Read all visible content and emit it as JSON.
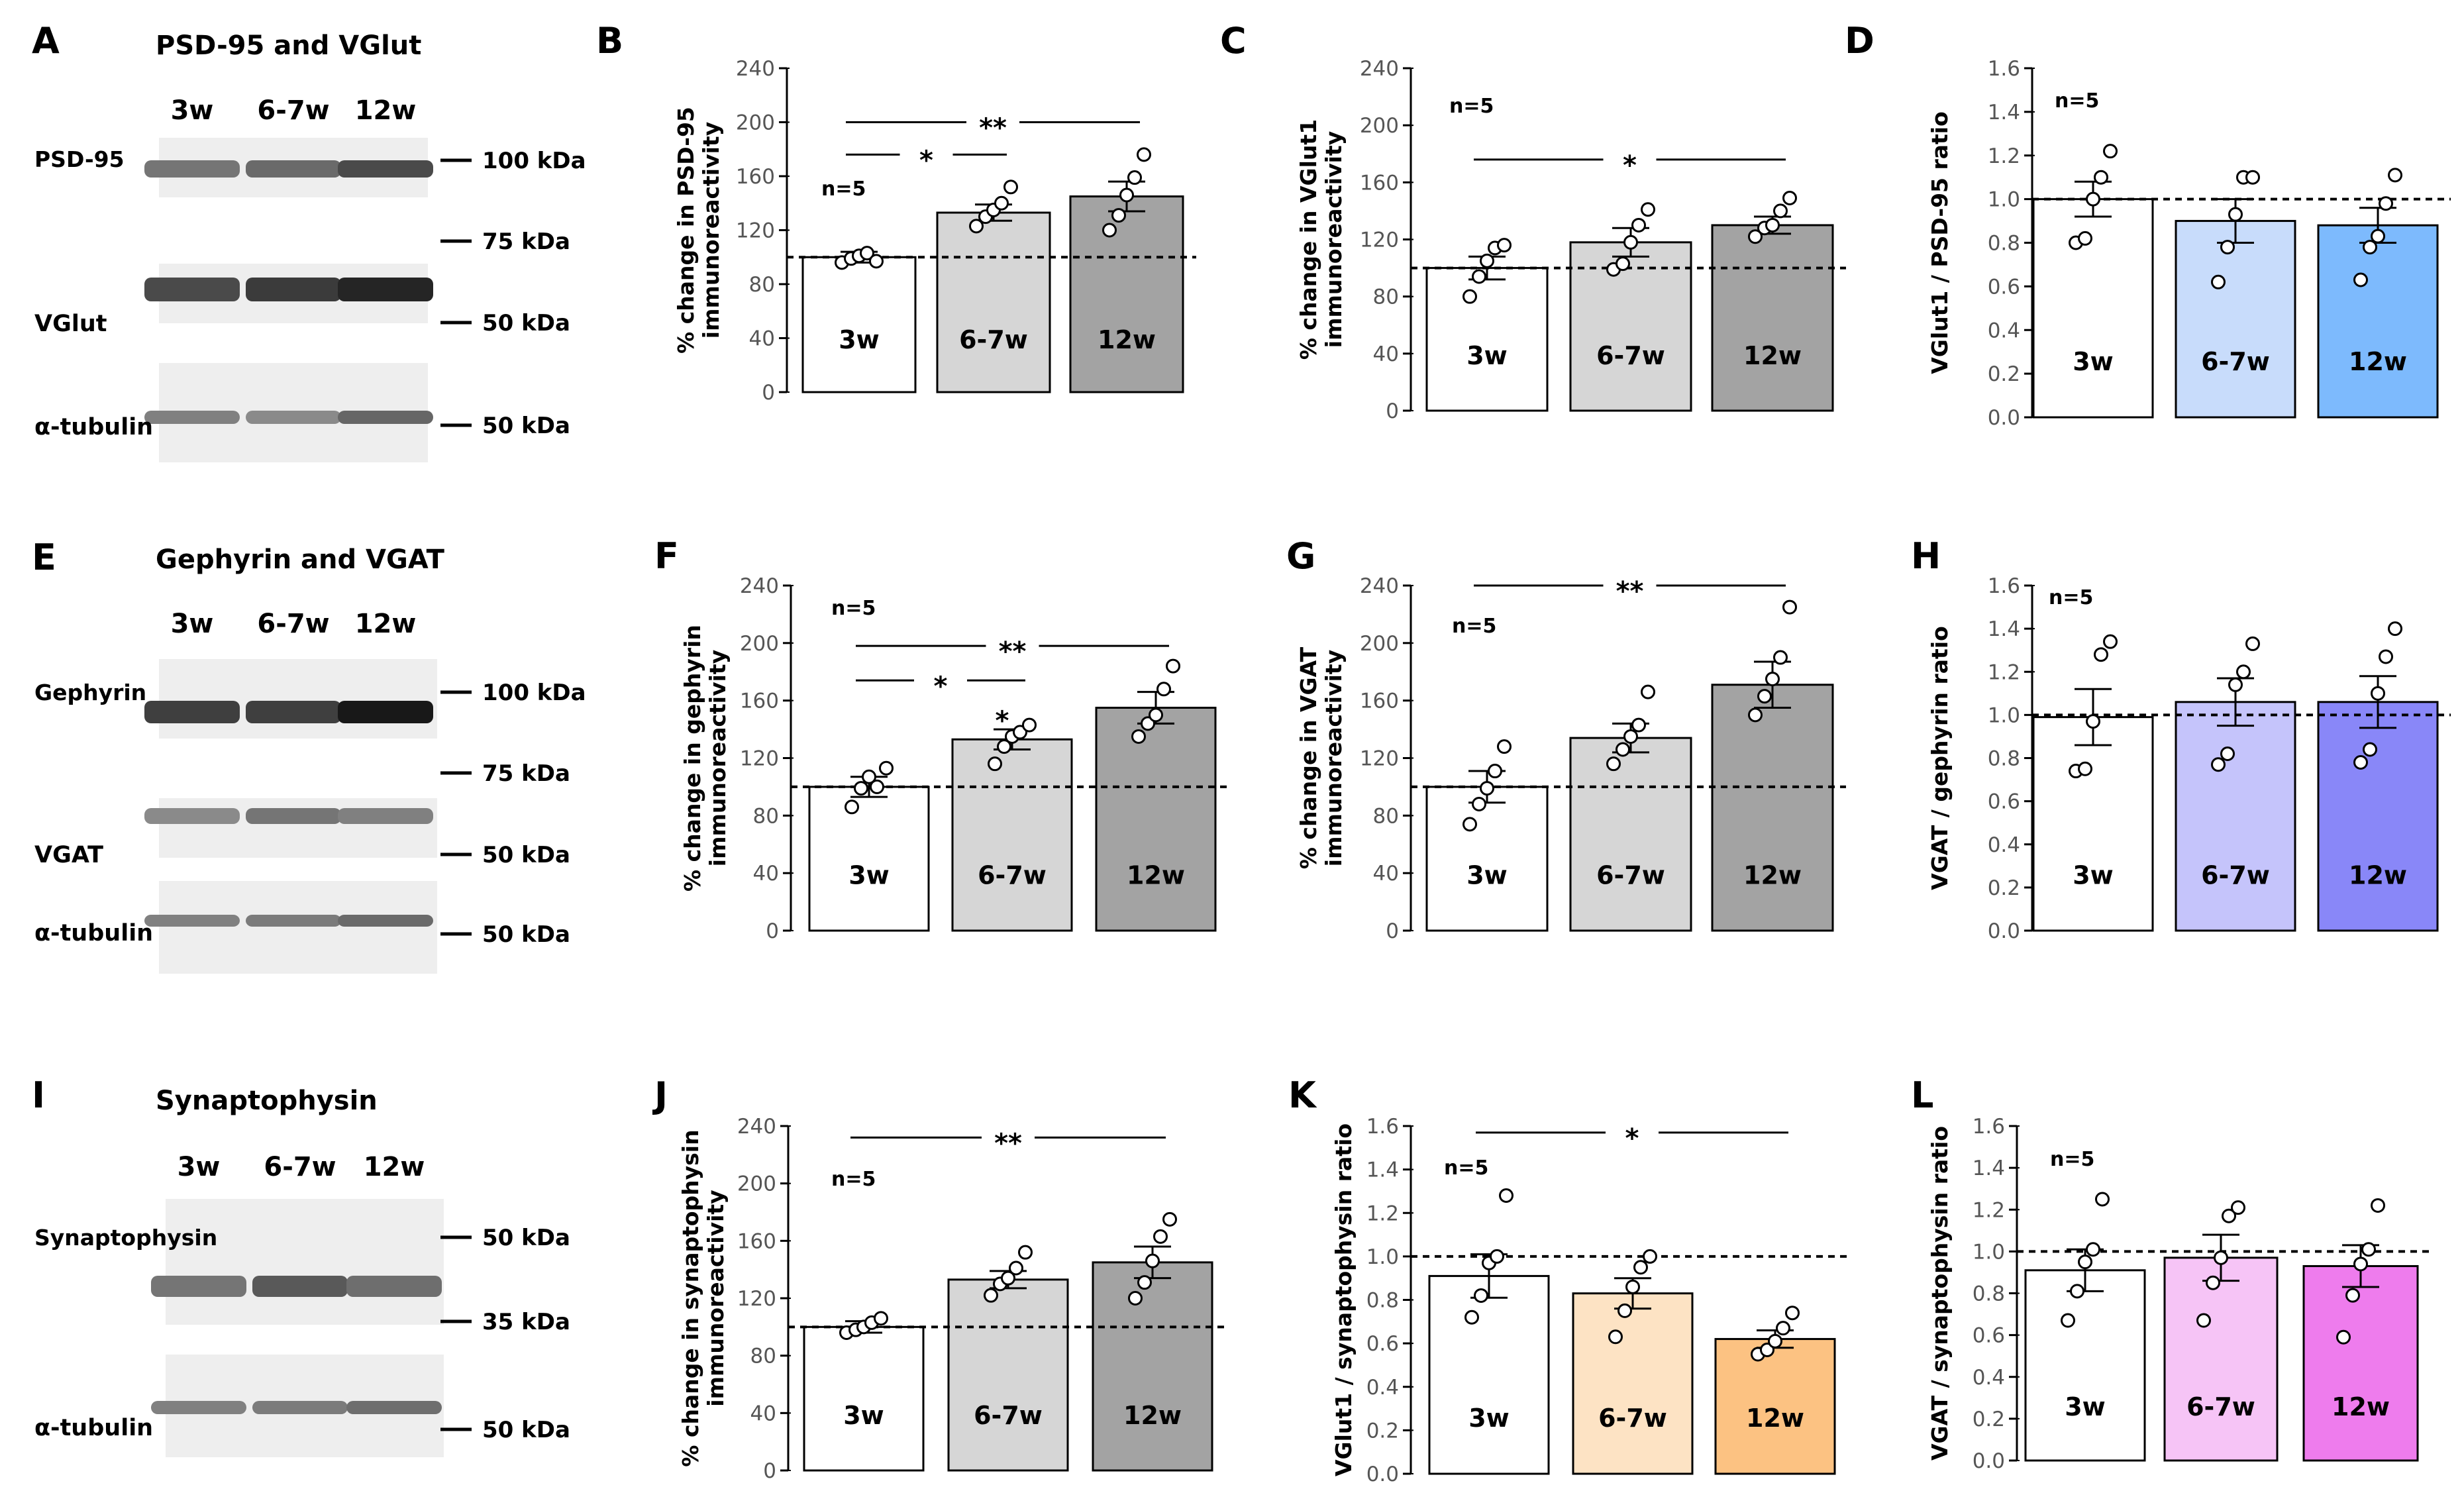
{
  "blots": [
    {
      "letter": "A",
      "title": "PSD-95 and VGlut",
      "groups": [
        "3w",
        "6-7w",
        "12w"
      ],
      "proteins": [
        {
          "name": "PSD-95",
          "marker": "100 kDa",
          "intensity": [
            0.55,
            0.6,
            0.75
          ]
        },
        {
          "name": "VGlut",
          "marker": "50 kDa",
          "intensity": [
            0.75,
            0.82,
            0.92
          ]
        },
        {
          "name": "α-tubulin",
          "marker": "50 kDa",
          "intensity": [
            0.5,
            0.45,
            0.62
          ]
        }
      ],
      "extra_markers": [
        "75 kDa"
      ]
    },
    {
      "letter": "E",
      "title": "Gephyrin and VGAT",
      "groups": [
        "3w",
        "6-7w",
        "12w"
      ],
      "proteins": [
        {
          "name": "Gephyrin",
          "marker": "100 kDa",
          "intensity": [
            0.8,
            0.8,
            0.98
          ]
        },
        {
          "name": "VGAT",
          "marker": "50 kDa",
          "intensity": [
            0.45,
            0.55,
            0.5
          ]
        },
        {
          "name": "α-tubulin",
          "marker": "50 kDa",
          "intensity": [
            0.5,
            0.52,
            0.6
          ]
        }
      ],
      "extra_markers": [
        "75 kDa"
      ]
    },
    {
      "letter": "I",
      "title": "Synaptophysin",
      "groups": [
        "3w",
        "6-7w",
        "12w"
      ],
      "proteins": [
        {
          "name": "Synaptophysin",
          "marker": "50 kDa",
          "intensity": [
            0.55,
            0.68,
            0.58
          ]
        },
        {
          "name": "α-tubulin",
          "marker": "50 kDa",
          "intensity": [
            0.5,
            0.52,
            0.58
          ]
        }
      ],
      "extra_markers": [
        "35 kDa"
      ]
    }
  ],
  "chart_data": [
    {
      "letter": "B",
      "type": "bar",
      "ylabel": [
        "% change in PSD-95",
        "immunoreactivity"
      ],
      "categories": [
        "3w",
        "6-7w",
        "12w"
      ],
      "values": [
        100,
        133,
        145
      ],
      "sem": [
        4,
        6,
        11
      ],
      "points": [
        [
          96,
          99,
          101,
          103,
          97
        ],
        [
          123,
          130,
          135,
          140,
          152
        ],
        [
          120,
          131,
          146,
          159,
          176
        ]
      ],
      "ylim": [
        0,
        240
      ],
      "yticks": [
        "0",
        "40",
        "80",
        "120",
        "160",
        "200",
        "240"
      ],
      "ref": 100,
      "n_label": "n=5",
      "colors": [
        "#ffffff",
        "#d6d6d6",
        "#a3a3a3"
      ],
      "sig": [
        {
          "from": 1,
          "to": 3,
          "stars": "**",
          "level": 200
        },
        {
          "from": 1,
          "to": 2,
          "stars": "*",
          "level": 176
        }
      ]
    },
    {
      "letter": "C",
      "type": "bar",
      "ylabel": [
        "% change in VGlut1",
        "immunoreactivity"
      ],
      "categories": [
        "3w",
        "6-7w",
        "12w"
      ],
      "values": [
        100,
        118,
        130
      ],
      "sem": [
        8,
        10,
        6
      ],
      "points": [
        [
          80,
          94,
          105,
          114,
          116
        ],
        [
          99,
          103,
          118,
          130,
          141
        ],
        [
          122,
          128,
          130,
          140,
          149
        ]
      ],
      "ylim": [
        0,
        240
      ],
      "yticks": [
        "0",
        "40",
        "80",
        "120",
        "160",
        "200",
        "240"
      ],
      "ref": 100,
      "n_label": "n=5",
      "colors": [
        "#ffffff",
        "#d6d6d6",
        "#a3a3a3"
      ],
      "sig": [
        {
          "from": 1,
          "to": 3,
          "stars": "*",
          "level": 176
        }
      ]
    },
    {
      "letter": "D",
      "type": "bar",
      "ylabel": [
        "VGlut1 / PSD-95 ratio"
      ],
      "categories": [
        "3w",
        "6-7w",
        "12w"
      ],
      "values": [
        1.0,
        0.9,
        0.88
      ],
      "sem": [
        0.08,
        0.1,
        0.08
      ],
      "points": [
        [
          0.8,
          0.82,
          1.0,
          1.1,
          1.22
        ],
        [
          0.62,
          0.78,
          0.93,
          1.1,
          1.1
        ],
        [
          0.63,
          0.78,
          0.83,
          0.98,
          1.11
        ]
      ],
      "ylim": [
        0,
        1.6
      ],
      "yticks": [
        "0.0",
        "0.2",
        "0.4",
        "0.6",
        "0.8",
        "1.0",
        "1.2",
        "1.4",
        "1.6"
      ],
      "ref": 1.0,
      "n_label": "n=5",
      "colors": [
        "#ffffff",
        "#c8dcfb",
        "#7dbafd"
      ],
      "sig": []
    },
    {
      "letter": "F",
      "type": "bar",
      "ylabel": [
        "% change in gephyrin",
        "immunoreactivity"
      ],
      "categories": [
        "3w",
        "6-7w",
        "12w"
      ],
      "values": [
        100,
        133,
        155
      ],
      "sem": [
        7,
        7,
        11
      ],
      "points": [
        [
          86,
          99,
          107,
          100,
          113
        ],
        [
          116,
          128,
          135,
          138,
          143
        ],
        [
          135,
          144,
          150,
          168,
          184
        ]
      ],
      "ylim": [
        0,
        240
      ],
      "yticks": [
        "0",
        "40",
        "80",
        "120",
        "160",
        "200",
        "240"
      ],
      "ref": 100,
      "n_label": "n=5",
      "colors": [
        "#ffffff",
        "#d6d6d6",
        "#a3a3a3"
      ],
      "sig": [
        {
          "from": 1,
          "to": 3,
          "stars": "**",
          "level": 198
        },
        {
          "from": 1,
          "to": 2,
          "stars": "*",
          "level": 174
        }
      ]
    },
    {
      "letter": "G",
      "type": "bar",
      "ylabel": [
        "% change in VGAT",
        "immunoreactivity"
      ],
      "categories": [
        "3w",
        "6-7w",
        "12w"
      ],
      "values": [
        100,
        134,
        171
      ],
      "sem": [
        11,
        10,
        16
      ],
      "points": [
        [
          74,
          88,
          99,
          111,
          128
        ],
        [
          116,
          126,
          135,
          143,
          166
        ],
        [
          150,
          163,
          175,
          190,
          225
        ]
      ],
      "ylim": [
        0,
        240
      ],
      "yticks": [
        "0",
        "40",
        "80",
        "120",
        "160",
        "200",
        "240"
      ],
      "ref": 100,
      "n_label": "n=5",
      "colors": [
        "#ffffff",
        "#d6d6d6",
        "#a3a3a3"
      ],
      "sig": [
        {
          "from": 1,
          "to": 3,
          "stars": "**",
          "level": 240
        }
      ]
    },
    {
      "letter": "H",
      "type": "bar",
      "ylabel": [
        "VGAT / gephyrin ratio"
      ],
      "categories": [
        "3w",
        "6-7w",
        "12w"
      ],
      "values": [
        0.99,
        1.06,
        1.06
      ],
      "sem": [
        0.13,
        0.11,
        0.12
      ],
      "points": [
        [
          0.74,
          0.75,
          0.97,
          1.28,
          1.34
        ],
        [
          0.77,
          0.82,
          1.14,
          1.2,
          1.33
        ],
        [
          0.78,
          0.84,
          1.1,
          1.27,
          1.4
        ]
      ],
      "ylim": [
        0,
        1.6
      ],
      "yticks": [
        "0.0",
        "0.2",
        "0.4",
        "0.6",
        "0.8",
        "1.0",
        "1.2",
        "1.4",
        "1.6"
      ],
      "ref": 1.0,
      "n_label": "n=5",
      "colors": [
        "#ffffff",
        "#c5c4fb",
        "#8987f8"
      ],
      "sig": []
    },
    {
      "letter": "J",
      "type": "bar",
      "ylabel": [
        "% change in synaptophysin",
        "immunoreactivity"
      ],
      "categories": [
        "3w",
        "6-7w",
        "12w"
      ],
      "values": [
        100,
        133,
        145
      ],
      "sem": [
        4,
        6,
        11
      ],
      "points": [
        [
          96,
          98,
          100,
          103,
          106
        ],
        [
          122,
          130,
          134,
          141,
          152
        ],
        [
          120,
          131,
          146,
          163,
          175
        ]
      ],
      "ylim": [
        0,
        240
      ],
      "yticks": [
        "0",
        "40",
        "80",
        "120",
        "160",
        "200",
        "240"
      ],
      "ref": 100,
      "n_label": "n=5",
      "colors": [
        "#ffffff",
        "#d6d6d6",
        "#a3a3a3"
      ],
      "sig": [
        {
          "from": 1,
          "to": 3,
          "stars": "**",
          "level": 232
        }
      ]
    },
    {
      "letter": "K",
      "type": "bar",
      "ylabel": [
        "VGlut1 / synaptophysin ratio"
      ],
      "categories": [
        "3w",
        "6-7w",
        "12w"
      ],
      "values": [
        0.91,
        0.83,
        0.62
      ],
      "sem": [
        0.1,
        0.07,
        0.04
      ],
      "points": [
        [
          0.72,
          0.82,
          0.97,
          1.0,
          1.28
        ],
        [
          0.63,
          0.75,
          0.86,
          0.95,
          1.0
        ],
        [
          0.55,
          0.57,
          0.61,
          0.67,
          0.74
        ]
      ],
      "ylim": [
        0,
        1.6
      ],
      "yticks": [
        "0.0",
        "0.2",
        "0.4",
        "0.6",
        "0.8",
        "1.0",
        "1.2",
        "1.4",
        "1.6"
      ],
      "ref": 1.0,
      "n_label": "n=5",
      "colors": [
        "#ffffff",
        "#fde3c4",
        "#fcc282"
      ],
      "sig": [
        {
          "from": 1,
          "to": 3,
          "stars": "*",
          "level": 1.57
        }
      ]
    },
    {
      "letter": "L",
      "type": "bar",
      "ylabel": [
        "VGAT / synaptophysin ratio"
      ],
      "categories": [
        "3w",
        "6-7w",
        "12w"
      ],
      "values": [
        0.91,
        0.97,
        0.93
      ],
      "sem": [
        0.1,
        0.11,
        0.1
      ],
      "points": [
        [
          0.67,
          0.81,
          0.95,
          1.01,
          1.25
        ],
        [
          0.67,
          0.85,
          0.97,
          1.17,
          1.21
        ],
        [
          0.59,
          0.79,
          0.94,
          1.01,
          1.22
        ]
      ],
      "ylim": [
        0,
        1.6
      ],
      "yticks": [
        "0.0",
        "0.2",
        "0.4",
        "0.6",
        "0.8",
        "1.0",
        "1.2",
        "1.4",
        "1.6"
      ],
      "ref": 1.0,
      "n_label": "n=5",
      "colors": [
        "#ffffff",
        "#f6c4f6",
        "#ee7ced"
      ],
      "sig": []
    }
  ]
}
